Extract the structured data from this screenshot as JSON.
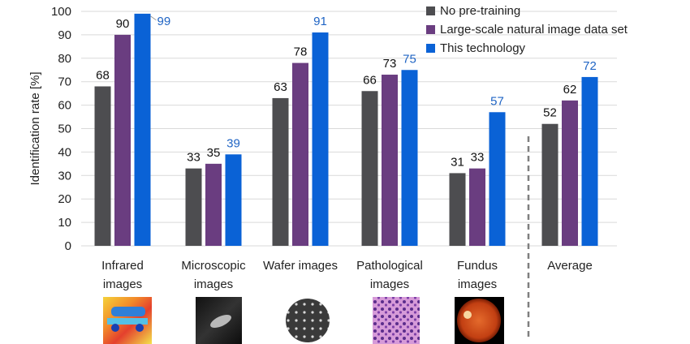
{
  "chart_data": {
    "type": "bar",
    "title": "",
    "ylabel": "Identification rate [%]",
    "xlabel": "",
    "ylim": [
      0,
      100
    ],
    "yticks": [
      0,
      10,
      20,
      30,
      40,
      50,
      60,
      70,
      80,
      90,
      100
    ],
    "grid": "horizontal",
    "legend_position": "top-right",
    "categories": [
      [
        "Infrared",
        "images"
      ],
      [
        "Microscopic",
        "images"
      ],
      [
        "Wafer images"
      ],
      [
        "Pathological",
        "images"
      ],
      [
        "Fundus",
        "images"
      ],
      [
        "Average"
      ]
    ],
    "series": [
      {
        "name": "No pre-training",
        "color": "#4d4d50",
        "label_color": "#111111",
        "values": [
          68,
          33,
          63,
          66,
          31,
          52
        ]
      },
      {
        "name": "Large-scale natural image data set",
        "color": "#6a3d80",
        "label_color": "#111111",
        "values": [
          90,
          35,
          78,
          73,
          33,
          62
        ]
      },
      {
        "name": "This technology",
        "color": "#0a62d6",
        "label_color": "#1f64c4",
        "values": [
          99,
          39,
          91,
          75,
          57,
          72
        ]
      }
    ],
    "separator_before_category": 5
  }
}
